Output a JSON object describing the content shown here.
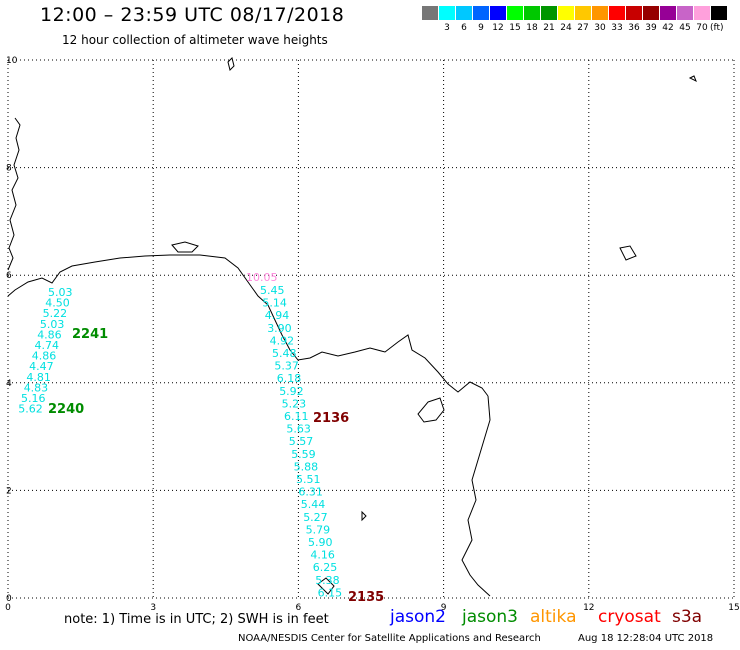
{
  "header": {
    "title": "12:00 – 23:59 UTC 08/17/2018",
    "subtitle": "12 hour collection of altimeter wave heights"
  },
  "legend": {
    "unit": "(ft)",
    "levels": [
      {
        "label": "",
        "color": "#777777"
      },
      {
        "label": "3",
        "color": "#00ffff"
      },
      {
        "label": "6",
        "color": "#00c8ff"
      },
      {
        "label": "9",
        "color": "#0064ff"
      },
      {
        "label": "12",
        "color": "#0000ff"
      },
      {
        "label": "15",
        "color": "#00ff00"
      },
      {
        "label": "18",
        "color": "#00c800"
      },
      {
        "label": "21",
        "color": "#009600"
      },
      {
        "label": "24",
        "color": "#ffff00"
      },
      {
        "label": "27",
        "color": "#ffc800"
      },
      {
        "label": "30",
        "color": "#ff9600"
      },
      {
        "label": "33",
        "color": "#ff0000"
      },
      {
        "label": "36",
        "color": "#c80000"
      },
      {
        "label": "39",
        "color": "#960000"
      },
      {
        "label": "42",
        "color": "#960096"
      },
      {
        "label": "45",
        "color": "#c864c8"
      },
      {
        "label": "70",
        "color": "#ffa0dc"
      },
      {
        "label": "",
        "color": "#000000"
      }
    ]
  },
  "axes": {
    "x_ticks": [
      "0",
      "3",
      "6",
      "9",
      "12",
      "15"
    ],
    "y_ticks": [
      "10",
      "8",
      "6",
      "4",
      "2",
      "0"
    ]
  },
  "tracks": [
    {
      "values": [
        "5.03",
        "4.50",
        "5.22",
        "5.03",
        "4.86",
        "4.74",
        "4.86",
        "4.47",
        "4.81",
        "4.83",
        "5.16",
        "5.62"
      ],
      "color": "#00e0e0"
    },
    {
      "values": [
        "10.05"
      ],
      "color": "#ff88dd"
    },
    {
      "values": [
        "5.45",
        "5.14",
        "4.94",
        "3.90",
        "4.92",
        "5.48",
        "5.37",
        "6.18",
        "5.92",
        "5.23",
        "6.11",
        "5.63",
        "5.57",
        "5.59",
        "5.88",
        "5.51",
        "6.31",
        "5.44",
        "5.27",
        "5.79",
        "5.90",
        "4.16",
        "6.25",
        "5.38",
        "6.15"
      ],
      "color": "#00e0e0"
    }
  ],
  "pass_labels": [
    {
      "text": "2241",
      "color": "#008c00"
    },
    {
      "text": "2240",
      "color": "#008c00"
    },
    {
      "text": "2136",
      "color": "#800000"
    },
    {
      "text": "2135",
      "color": "#800000"
    }
  ],
  "footer": {
    "note": "note: 1) Time is in UTC; 2) SWH is in feet",
    "satellites": [
      {
        "name": "jason2",
        "color": "#0000ff"
      },
      {
        "name": "jason3",
        "color": "#008c00"
      },
      {
        "name": "altika",
        "color": "#ff9600"
      },
      {
        "name": "cryosat",
        "color": "#ff0000"
      },
      {
        "name": "s3a",
        "color": "#800000"
      }
    ],
    "credit": "NOAA/NESDIS Center for Satellite Applications and Research",
    "timestamp": "Aug 18 12:28:04 UTC 2018"
  }
}
